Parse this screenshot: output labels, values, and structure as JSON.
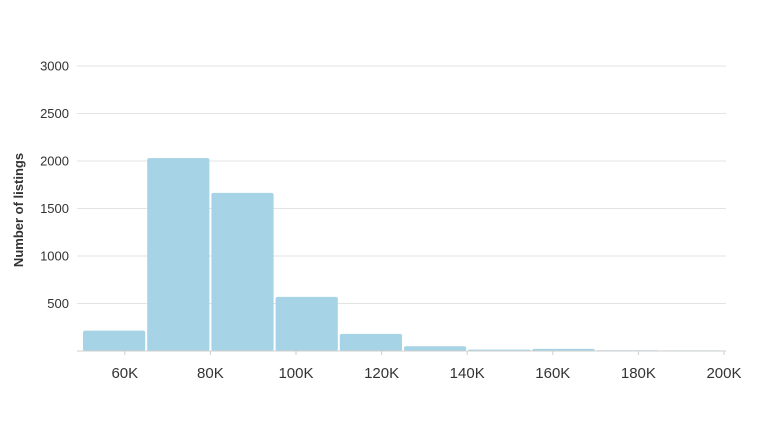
{
  "chart_data": {
    "type": "bar",
    "ylabel": "Number of listings",
    "xlabel": "",
    "title": "",
    "bar_color": "#a6d3e6",
    "grid": true,
    "ylim": [
      0,
      3000
    ],
    "yticks": [
      500,
      1000,
      1500,
      2000,
      2500,
      3000
    ],
    "ytick_labels": [
      "500",
      "1000",
      "1500",
      "2000",
      "2500",
      "3000"
    ],
    "xlim": [
      50000,
      200000
    ],
    "xticks": [
      60000,
      80000,
      100000,
      120000,
      140000,
      160000,
      180000,
      200000
    ],
    "xtick_labels": [
      "60K",
      "80K",
      "100K",
      "120K",
      "140K",
      "160K",
      "180K",
      "200K"
    ],
    "bins": [
      {
        "start": 50000,
        "end": 65000,
        "value": 215
      },
      {
        "start": 65000,
        "end": 80000,
        "value": 2030
      },
      {
        "start": 80000,
        "end": 95000,
        "value": 1665
      },
      {
        "start": 95000,
        "end": 110000,
        "value": 570
      },
      {
        "start": 110000,
        "end": 125000,
        "value": 180
      },
      {
        "start": 125000,
        "end": 140000,
        "value": 50
      },
      {
        "start": 140000,
        "end": 155000,
        "value": 15
      },
      {
        "start": 155000,
        "end": 170000,
        "value": 22
      },
      {
        "start": 170000,
        "end": 185000,
        "value": 8
      },
      {
        "start": 185000,
        "end": 200000,
        "value": 6
      }
    ]
  }
}
